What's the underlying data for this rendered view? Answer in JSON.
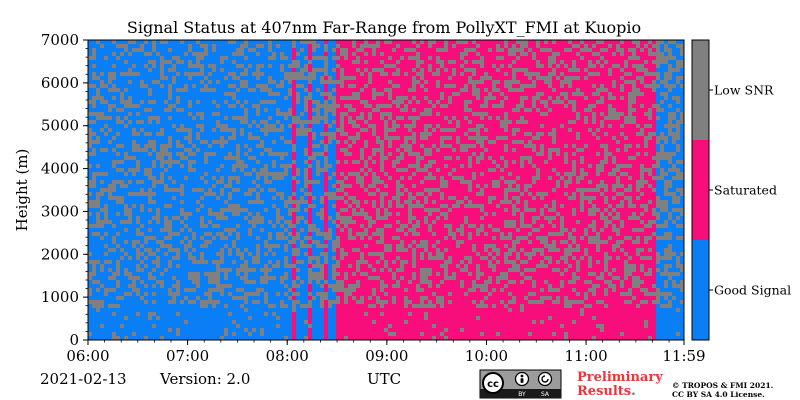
{
  "chart_data": {
    "type": "heatmap",
    "title": "Signal Status at 407nm Far-Range from PollyXT_FMI at Kuopio",
    "ylabel": "Height (m)",
    "xlabel": "UTC",
    "ylim": [
      0,
      7000
    ],
    "y_ticks": [
      0,
      1000,
      2000,
      3000,
      4000,
      5000,
      6000,
      7000
    ],
    "y_tick_labels": [
      "0",
      "1000",
      "2000",
      "3000",
      "4000",
      "5000",
      "6000",
      "7000"
    ],
    "x_ticks_hours": [
      6.0,
      7.0,
      8.0,
      9.0,
      10.0,
      11.0,
      11.983
    ],
    "x_tick_labels": [
      "06:00",
      "07:00",
      "08:00",
      "09:00",
      "10:00",
      "11:00",
      "11:59"
    ],
    "xlim_hours": [
      6.0,
      11.983
    ],
    "colorbar": {
      "categories": [
        "Good Signal",
        "Saturated",
        "Low SNR"
      ],
      "colors": [
        "#0a7ff5",
        "#f70e7a",
        "#808080"
      ]
    },
    "segments": [
      {
        "start": 6.0,
        "end": 8.0,
        "dominant": "Good Signal",
        "low_snr_fraction": 0.35
      },
      {
        "start": 8.0,
        "end": 8.55,
        "dominant": "Mixed stripes",
        "low_snr_fraction": 0.4
      },
      {
        "start": 8.55,
        "end": 11.7,
        "dominant": "Saturated",
        "low_snr_fraction": 0.35
      },
      {
        "start": 11.7,
        "end": 11.983,
        "dominant": "Good Signal",
        "low_snr_fraction": 0.45
      }
    ]
  },
  "footer": {
    "date": "2021-02-13",
    "version": "Version: 2.0",
    "cc_badge": "cc",
    "cc_by": "BY",
    "cc_sa": "SA",
    "preliminary_line1": "Preliminary",
    "preliminary_line2": "Results.",
    "copyright_line1": "© TROPOS & FMI 2021.",
    "copyright_line2": "CC BY SA 4.0 License."
  },
  "colors": {
    "good": "#0a7ff5",
    "saturated": "#f70e7a",
    "low_snr": "#808080",
    "preliminary": "#e8363b"
  }
}
